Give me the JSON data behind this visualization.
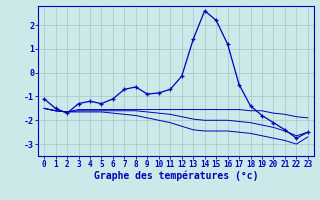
{
  "title": "Graphe des températures (°c)",
  "background_color": "#cce8e8",
  "grid_color": "#aacccc",
  "line_color": "#0000bb",
  "ylim": [
    -3.5,
    2.8
  ],
  "xlim": [
    -0.5,
    23.5
  ],
  "yticks": [
    -3,
    -2,
    -1,
    0,
    1,
    2
  ],
  "xticks": [
    0,
    1,
    2,
    3,
    4,
    5,
    6,
    7,
    8,
    9,
    10,
    11,
    12,
    13,
    14,
    15,
    16,
    17,
    18,
    19,
    20,
    21,
    22,
    23
  ],
  "series1_x": [
    0,
    1,
    2,
    3,
    4,
    5,
    6,
    7,
    8,
    9,
    10,
    11,
    12,
    13,
    14,
    15,
    16,
    17,
    18,
    19,
    20,
    21,
    22,
    23
  ],
  "series1_y": [
    -1.1,
    -1.5,
    -1.7,
    -1.3,
    -1.2,
    -1.3,
    -1.1,
    -0.7,
    -0.6,
    -0.9,
    -0.85,
    -0.7,
    -0.15,
    1.4,
    2.6,
    2.2,
    1.2,
    -0.5,
    -1.4,
    -1.8,
    -2.1,
    -2.4,
    -2.75,
    -2.5
  ],
  "series2_x": [
    0,
    1,
    2,
    3,
    4,
    5,
    6,
    7,
    8,
    9,
    10,
    11,
    12,
    13,
    14,
    15,
    16,
    17,
    18,
    19,
    20,
    21,
    22,
    23
  ],
  "series2_y": [
    -1.5,
    -1.6,
    -1.65,
    -1.55,
    -1.55,
    -1.55,
    -1.55,
    -1.55,
    -1.55,
    -1.55,
    -1.55,
    -1.55,
    -1.55,
    -1.55,
    -1.55,
    -1.55,
    -1.55,
    -1.55,
    -1.6,
    -1.6,
    -1.7,
    -1.75,
    -1.85,
    -1.9
  ],
  "series3_x": [
    0,
    1,
    2,
    3,
    4,
    5,
    6,
    7,
    8,
    9,
    10,
    11,
    12,
    13,
    14,
    15,
    16,
    17,
    18,
    19,
    20,
    21,
    22,
    23
  ],
  "series3_y": [
    -1.5,
    -1.6,
    -1.65,
    -1.6,
    -1.6,
    -1.6,
    -1.6,
    -1.6,
    -1.6,
    -1.65,
    -1.7,
    -1.75,
    -1.85,
    -1.95,
    -2.0,
    -2.0,
    -2.0,
    -2.05,
    -2.1,
    -2.2,
    -2.3,
    -2.45,
    -2.65,
    -2.5
  ],
  "series4_x": [
    0,
    1,
    2,
    3,
    4,
    5,
    6,
    7,
    8,
    9,
    10,
    11,
    12,
    13,
    14,
    15,
    16,
    17,
    18,
    19,
    20,
    21,
    22,
    23
  ],
  "series4_y": [
    -1.5,
    -1.6,
    -1.65,
    -1.65,
    -1.65,
    -1.65,
    -1.7,
    -1.75,
    -1.8,
    -1.9,
    -2.0,
    -2.1,
    -2.25,
    -2.4,
    -2.45,
    -2.45,
    -2.45,
    -2.5,
    -2.55,
    -2.65,
    -2.75,
    -2.85,
    -3.0,
    -2.7
  ]
}
